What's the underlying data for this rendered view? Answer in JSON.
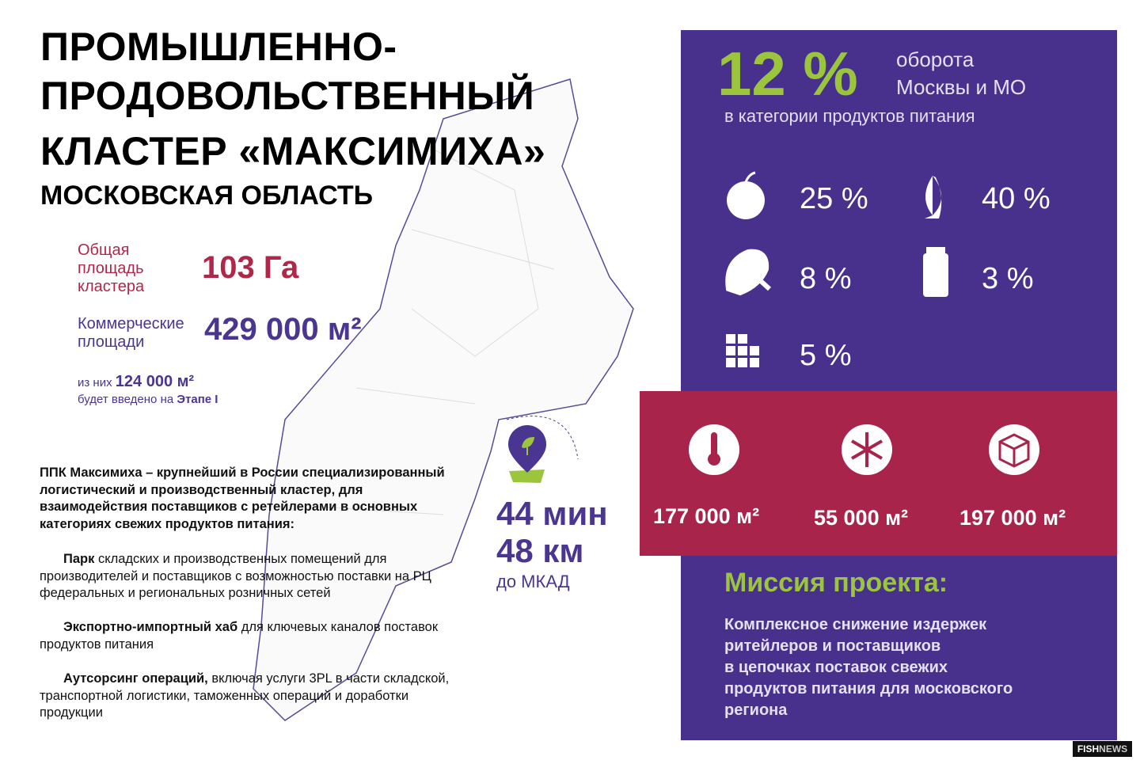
{
  "header": {
    "title_lines": [
      "ПРОМЫШЛЕННО-",
      "ПРОДОВОЛЬСТВЕННЫЙ",
      "КЛАСТЕР «МАКСИМИХА»"
    ],
    "subtitle": "МОСКОВСКАЯ ОБЛАСТЬ"
  },
  "stats": {
    "total_area": {
      "label_lines": [
        "Общая",
        "площадь",
        "кластера"
      ],
      "value": "103 Га"
    },
    "commercial": {
      "label_lines": [
        "Коммерческие",
        "площади"
      ],
      "value": "429 000 м²"
    },
    "stage": {
      "prefix": "из них",
      "value": "124 000 м²",
      "line2": "будет введено на",
      "stage": "Этапе I"
    }
  },
  "description": {
    "intro": "ППК Максимиха – крупнейший в России специализированный логистический и производственный кластер, для взаимодействия поставщиков с ретейлерами в основных категориях свежих продуктов питания:",
    "bullets": [
      {
        "bold": "Парк",
        "text": "складских и производственных помещений для производителей и поставщиков с возможностью поставки на РЦ федеральных и региональных розничных сетей"
      },
      {
        "bold": "Экспортно-импортный хаб",
        "text": "для ключевых каналов поставок продуктов питания"
      },
      {
        "bold": "Аутсорсинг операций,",
        "text": "включая услуги 3PL в части складской, транспортной логистики, таможенных операций и доработки продукции"
      }
    ]
  },
  "distance": {
    "time": "44 мин",
    "km": "48 км",
    "to": "до МКАД"
  },
  "share": {
    "value": "12 %",
    "line1": "оборота",
    "line2": "Москвы и МО",
    "line3": "в категории продуктов питания"
  },
  "categories": [
    "25 %",
    "40 %",
    "8 %",
    "3 %",
    "5 %"
  ],
  "areas": [
    "177 000 м²",
    "55 000 м²",
    "197 000 м²"
  ],
  "mission": {
    "title": "Миссия проекта:",
    "lines": [
      "Комплексное снижение издержек",
      "ритейлеров и поставщиков",
      "в цепочках поставок свежих",
      "продуктов питания для московского",
      "региона"
    ]
  },
  "logo": {
    "part1": "FISH",
    "part2": "NEWS"
  }
}
